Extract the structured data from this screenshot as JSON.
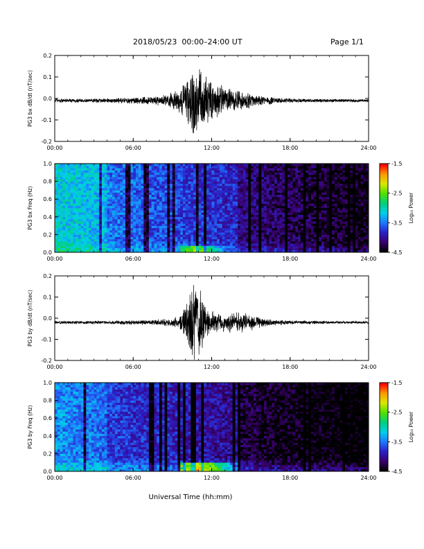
{
  "header": {
    "title": "2018/05/23  00:00–24:00 UT",
    "page": "Page 1/1"
  },
  "footer": {
    "xlabel": "Universal Time (hh:mm)"
  },
  "colorbar": {
    "label": "Log₁₀ Power",
    "ticks": [
      "-1.5",
      "-2.5",
      "-3.5",
      "-4.5"
    ],
    "range": [
      -4.5,
      -1.5
    ],
    "colors": [
      "#000000",
      "#3a0070",
      "#2a20c8",
      "#1e78ff",
      "#00d0e8",
      "#00d07a",
      "#50e000",
      "#d8e800",
      "#ff9a00",
      "#ff0000"
    ]
  },
  "chart_data": [
    {
      "type": "line",
      "ylabel": "PG3 bx dB/dt (nT/sec)",
      "xlim": [
        0,
        24
      ],
      "ylim": [
        -0.2,
        0.2
      ],
      "xticks": [
        "00:00",
        "06:00",
        "12:00",
        "18:00",
        "24:00"
      ],
      "yticks": [
        "-0.2",
        "-0.1",
        "0.0",
        "0.1",
        "0.2"
      ],
      "baseline": -0.01,
      "envelope": [
        {
          "x": 0,
          "amp": 0.012
        },
        {
          "x": 2,
          "amp": 0.01
        },
        {
          "x": 4,
          "amp": 0.012
        },
        {
          "x": 5.5,
          "amp": 0.015
        },
        {
          "x": 7,
          "amp": 0.02
        },
        {
          "x": 8.5,
          "amp": 0.03
        },
        {
          "x": 9.5,
          "amp": 0.06
        },
        {
          "x": 10.2,
          "amp": 0.12
        },
        {
          "x": 10.6,
          "amp": 0.2
        },
        {
          "x": 11.2,
          "amp": 0.16
        },
        {
          "x": 12,
          "amp": 0.1
        },
        {
          "x": 13,
          "amp": 0.07
        },
        {
          "x": 14,
          "amp": 0.05
        },
        {
          "x": 15,
          "amp": 0.04
        },
        {
          "x": 16,
          "amp": 0.025
        },
        {
          "x": 17,
          "amp": 0.015
        },
        {
          "x": 19,
          "amp": 0.01
        },
        {
          "x": 24,
          "amp": 0.008
        }
      ]
    },
    {
      "type": "heatmap",
      "ylabel": "PG3 bx Freq (Hz)",
      "xlim": [
        0,
        24
      ],
      "ylim": [
        0,
        1
      ],
      "xticks": [
        "00:00",
        "06:00",
        "12:00",
        "18:00",
        "24:00"
      ],
      "yticks": [
        "0.0",
        "0.2",
        "0.4",
        "0.6",
        "0.8",
        "1.0"
      ],
      "zrange": [
        -4.5,
        -1.5
      ]
    },
    {
      "type": "line",
      "ylabel": "PG3 by dB/dt (nT/sec)",
      "xlim": [
        0,
        24
      ],
      "ylim": [
        -0.2,
        0.2
      ],
      "xticks": [
        "00:00",
        "06:00",
        "12:00",
        "18:00",
        "24:00"
      ],
      "yticks": [
        "-0.2",
        "-0.1",
        "0.0",
        "0.1",
        "0.2"
      ],
      "baseline": -0.02,
      "envelope": [
        {
          "x": 0,
          "amp": 0.008
        },
        {
          "x": 2,
          "amp": 0.008
        },
        {
          "x": 4,
          "amp": 0.01
        },
        {
          "x": 6,
          "amp": 0.012
        },
        {
          "x": 8,
          "amp": 0.015
        },
        {
          "x": 9.5,
          "amp": 0.03
        },
        {
          "x": 10.2,
          "amp": 0.12
        },
        {
          "x": 10.6,
          "amp": 0.22
        },
        {
          "x": 11.2,
          "amp": 0.18
        },
        {
          "x": 11.8,
          "amp": 0.06
        },
        {
          "x": 13,
          "amp": 0.05
        },
        {
          "x": 14,
          "amp": 0.06
        },
        {
          "x": 15,
          "amp": 0.04
        },
        {
          "x": 16,
          "amp": 0.02
        },
        {
          "x": 18,
          "amp": 0.01
        },
        {
          "x": 24,
          "amp": 0.006
        }
      ]
    },
    {
      "type": "heatmap",
      "ylabel": "PG3 by Freq (Hz)",
      "xlim": [
        0,
        24
      ],
      "ylim": [
        0,
        1
      ],
      "xticks": [
        "00:00",
        "06:00",
        "12:00",
        "18:00",
        "24:00"
      ],
      "yticks": [
        "0.0",
        "0.2",
        "0.4",
        "0.6",
        "0.8",
        "1.0"
      ],
      "zrange": [
        -4.5,
        -1.5
      ]
    }
  ]
}
